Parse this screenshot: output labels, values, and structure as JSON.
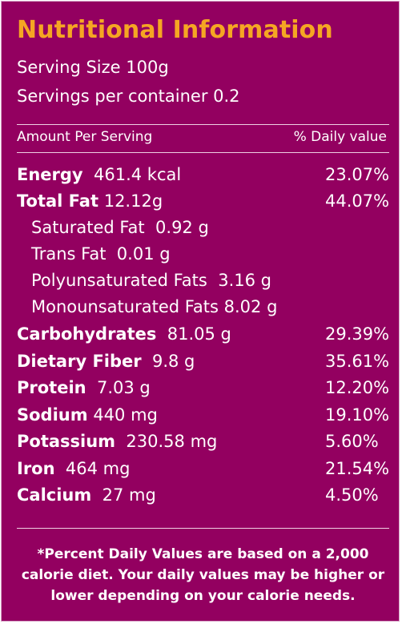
{
  "label": {
    "title": "Nutritional Information",
    "serving_size": "Serving Size 100g",
    "servings_per_container": "Servings per container 0.2",
    "amount_header": "Amount Per Serving",
    "daily_value_header": "% Daily value",
    "rows": [
      {
        "name": "Energy",
        "amount": "461.4 kcal",
        "dv": "23.07%"
      },
      {
        "name": "Total Fat",
        "amount": "12.12g",
        "dv": "44.07%"
      },
      {
        "name": "Saturated Fat",
        "amount": "0.92 g",
        "dv": ""
      },
      {
        "name": "Trans Fat",
        "amount": "0.01 g",
        "dv": ""
      },
      {
        "name": "Polyunsaturated Fats",
        "amount": "3.16 g",
        "dv": ""
      },
      {
        "name": "Monounsaturated Fats",
        "amount": "8.02 g",
        "dv": ""
      },
      {
        "name": "Carbohydrates",
        "amount": "81.05 g",
        "dv": "29.39%"
      },
      {
        "name": "Dietary Fiber",
        "amount": "9.8 g",
        "dv": "35.61%"
      },
      {
        "name": "Protein",
        "amount": "7.03 g",
        "dv": "12.20%"
      },
      {
        "name": "Sodium",
        "amount": "440 mg",
        "dv": "19.10%"
      },
      {
        "name": "Potassium",
        "amount": "230.58 mg",
        "dv": "5.60%"
      },
      {
        "name": "Iron",
        "amount": "464 mg",
        "dv": "21.54%"
      },
      {
        "name": "Calcium",
        "amount": "27 mg",
        "dv": "4.50%"
      }
    ],
    "footnote": "*Percent Daily Values are based on a 2,000 calorie diet. Your daily values may be higher or lower depending on your calorie needs."
  },
  "colors": {
    "background": "#930060",
    "title": "#f5a623",
    "text": "#ffffff"
  }
}
